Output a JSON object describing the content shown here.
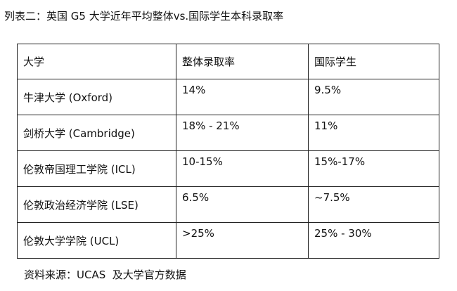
{
  "title": "列表二：英国 G5 大学近年平均整体vs.国际学生本科录取率",
  "table": {
    "header": [
      "大学",
      "整体录取率",
      "国际学生"
    ],
    "rows": [
      [
        "牛津大学 (Oxford)",
        "14%",
        "9.5%"
      ],
      [
        "剑桥大学 (Cambridge)",
        "18% - 21%",
        "11%"
      ],
      [
        "伦敦帝国理工学院 (ICL)",
        "10-15%",
        "15%-17%"
      ],
      [
        "伦敦政治经济学院 (LSE)",
        "6.5%",
        "~7.5%"
      ],
      [
        "伦敦大学学院 (UCL)",
        ">25%",
        "25% - 30%"
      ]
    ]
  },
  "source": "资料来源：UCAS  及大学官方数据"
}
